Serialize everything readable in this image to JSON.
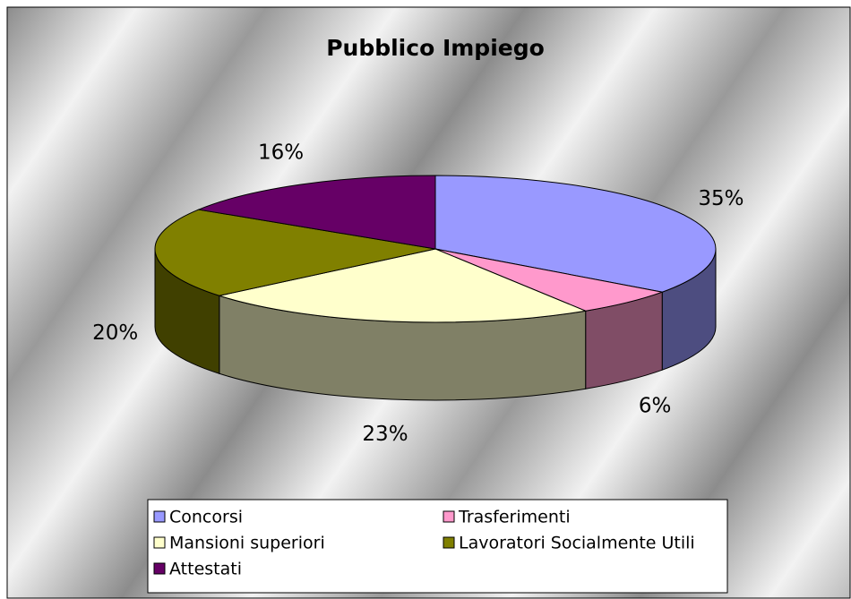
{
  "chart_data": {
    "type": "pie3d",
    "title": "Pubblico Impiego",
    "categories": [
      "Concorsi",
      "Trasferimenti",
      "Mansioni superiori",
      "Lavoratori Socialmente Utili",
      "Attestati"
    ],
    "values": [
      35,
      6,
      23,
      20,
      16
    ],
    "value_labels": [
      "35%",
      "6%",
      "23%",
      "20%",
      "16%"
    ],
    "colors": [
      "#9999ff",
      "#ff99cc",
      "#ffffcc",
      "#808000",
      "#660066"
    ],
    "legend": "bottom"
  }
}
